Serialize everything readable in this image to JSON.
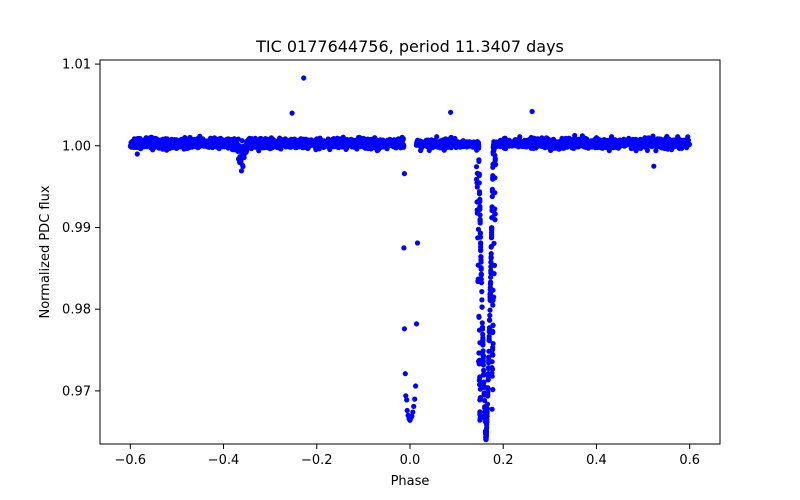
{
  "chart_data": {
    "type": "scatter",
    "title": "TIC 0177644756, period 11.3407 days",
    "xlabel": "Phase",
    "ylabel": "Normalized PDC flux",
    "xlim": [
      -0.665,
      0.665
    ],
    "ylim": [
      0.9635,
      1.0105
    ],
    "xticks": [
      -0.6,
      -0.4,
      -0.2,
      0.0,
      0.2,
      0.4,
      0.6
    ],
    "xtick_labels": [
      "−0.6",
      "−0.4",
      "−0.2",
      "0.0",
      "0.2",
      "0.4",
      "0.6"
    ],
    "yticks": [
      0.97,
      0.98,
      0.99,
      1.0,
      1.01
    ],
    "ytick_labels": [
      "0.97",
      "0.98",
      "0.99",
      "1.00",
      "1.01"
    ],
    "grid": false,
    "series": [
      {
        "name": "flux",
        "color": "#0000ff",
        "marker": "circle",
        "baseline": {
          "x_range": [
            -0.6,
            0.6
          ],
          "center": 1.0003,
          "spread": 0.0012,
          "count": 2600
        },
        "dip_near_minus_0_36": {
          "center_x": -0.36,
          "width": 0.012,
          "min_y": 0.9962
        },
        "secondary_eclipse": {
          "points": [
            [
              -0.012,
              0.9966
            ],
            [
              -0.013,
              0.9875
            ],
            [
              -0.012,
              0.9776
            ],
            [
              -0.01,
              0.9721
            ],
            [
              -0.009,
              0.9694
            ],
            [
              -0.007,
              0.9689
            ],
            [
              -0.006,
              0.9676
            ],
            [
              -0.004,
              0.967
            ],
            [
              -0.002,
              0.9666
            ],
            [
              0.0,
              0.9664
            ],
            [
              0.002,
              0.9667
            ],
            [
              0.004,
              0.9669
            ],
            [
              0.006,
              0.9674
            ],
            [
              0.008,
              0.9681
            ],
            [
              0.01,
              0.969
            ],
            [
              0.012,
              0.9706
            ],
            [
              0.014,
              0.9782
            ],
            [
              0.016,
              0.9881
            ]
          ]
        },
        "primary_eclipse": {
          "center_x": 0.163,
          "half_width": 0.028,
          "min_y": 0.9642,
          "count": 240
        },
        "outliers": [
          [
            -0.228,
            1.0083
          ],
          [
            0.087,
            1.0041
          ],
          [
            0.262,
            1.0042
          ],
          [
            -0.253,
            1.004
          ],
          [
            -0.585,
            0.999
          ],
          [
            0.523,
            0.9975
          ]
        ]
      }
    ]
  }
}
